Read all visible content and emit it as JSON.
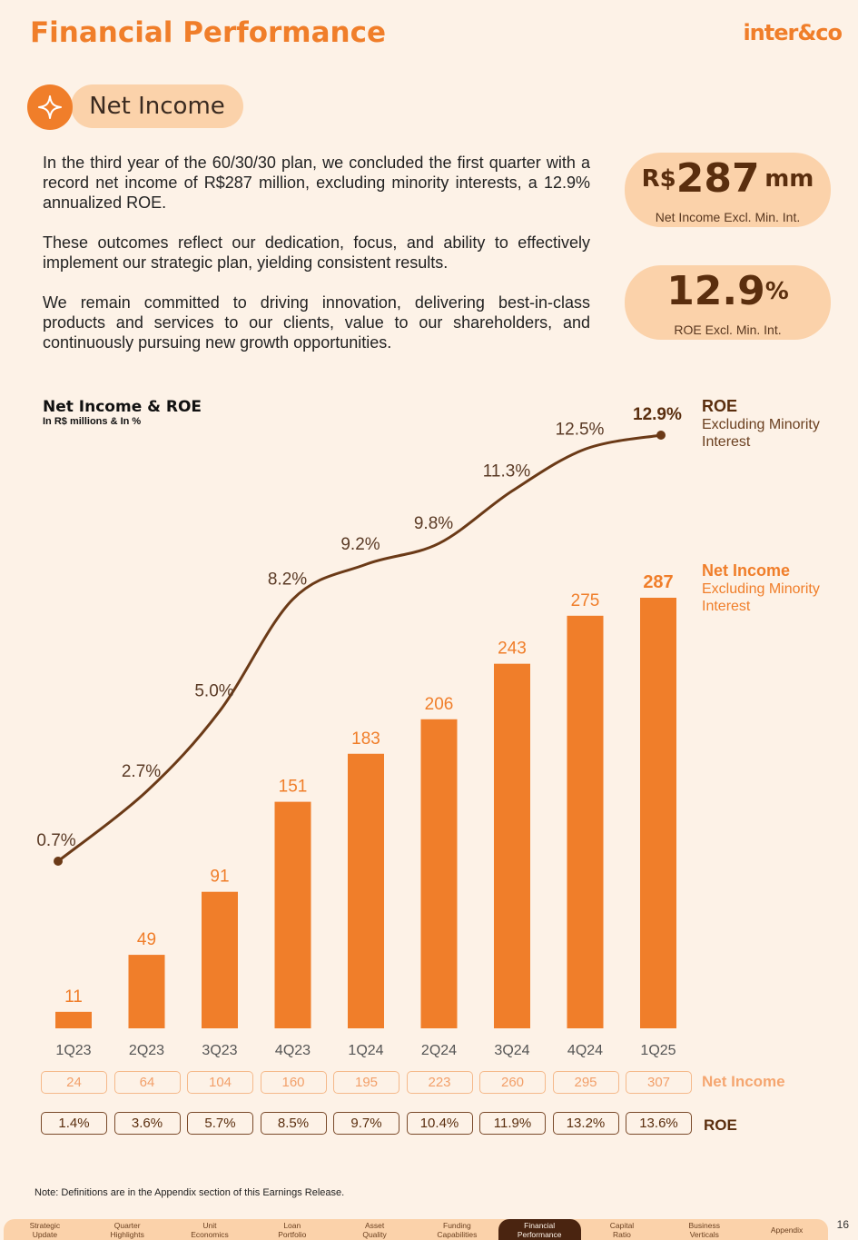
{
  "header": {
    "title": "Financial Performance",
    "logo": "inter&co"
  },
  "section": {
    "icon": "sparkle-icon",
    "label": "Net Income"
  },
  "paragraphs": [
    "In the third year of the 60/30/30 plan, we concluded the first quarter with a record net income of R$287 million, excluding minority interests, a 12.9% annualized ROE.",
    "These outcomes reflect our dedication, focus, and ability to effectively implement our strategic plan, yielding consistent results.",
    "We remain committed to driving innovation, delivering best-in-class products and services to our clients, value to our shareholders, and continuously pursuing new growth opportunities."
  ],
  "kpis": [
    {
      "prefix": "R$",
      "value": "287",
      "suffix": "mm",
      "label": "Net Income Excl. Min. Int."
    },
    {
      "prefix": "",
      "value": "12.9",
      "suffix": "%",
      "label": "ROE Excl. Min. Int."
    }
  ],
  "chart_data": {
    "type": "bar+line",
    "title": "Net Income & ROE",
    "subtitle": "In R$ millions & In %",
    "categories": [
      "1Q23",
      "2Q23",
      "3Q23",
      "4Q23",
      "1Q24",
      "2Q24",
      "3Q24",
      "4Q24",
      "1Q25"
    ],
    "series": [
      {
        "name": "Net Income",
        "type": "bar",
        "values": [
          11,
          49,
          91,
          151,
          183,
          206,
          243,
          275,
          287
        ],
        "labels": [
          "11",
          "49",
          "91",
          "151",
          "183",
          "206",
          "243",
          "275",
          "287"
        ],
        "color": "#f07e2a"
      },
      {
        "name": "ROE",
        "type": "line",
        "values": [
          0.7,
          2.7,
          5.0,
          8.2,
          9.2,
          9.8,
          11.3,
          12.5,
          12.9
        ],
        "labels": [
          "0.7%",
          "2.7%",
          "5.0%",
          "8.2%",
          "9.2%",
          "9.8%",
          "11.3%",
          "12.5%",
          "12.9%"
        ],
        "color": "#6b3a17"
      }
    ],
    "legend": [
      {
        "name": "ROE",
        "sub": "Excluding Minority Interest"
      },
      {
        "name": "Net Income",
        "sub": "Excluding Minority Interest"
      }
    ],
    "bar_ylim": [
      0,
      300
    ],
    "line_ylim": [
      0,
      14
    ]
  },
  "table": {
    "net_income_label": "Net Income",
    "net_income": [
      "24",
      "64",
      "104",
      "160",
      "195",
      "223",
      "260",
      "295",
      "307"
    ],
    "roe_label": "ROE",
    "roe": [
      "1.4%",
      "3.6%",
      "5.7%",
      "8.5%",
      "9.7%",
      "10.4%",
      "11.9%",
      "13.2%",
      "13.6%"
    ]
  },
  "note": "Note: Definitions are in the Appendix section of this Earnings Release.",
  "nav": [
    [
      "Strategic",
      "Update"
    ],
    [
      "Quarter",
      "Highlights"
    ],
    [
      "Unit",
      "Economics"
    ],
    [
      "Loan",
      "Portfolio"
    ],
    [
      "Asset",
      "Quality"
    ],
    [
      "Funding",
      "Capabilities"
    ],
    [
      "Financial",
      "Performance"
    ],
    [
      "Capital",
      "Ratio"
    ],
    [
      "Business",
      "Verticals"
    ],
    [
      "Appendix",
      ""
    ]
  ],
  "nav_active": "Financial",
  "page_number": "16"
}
